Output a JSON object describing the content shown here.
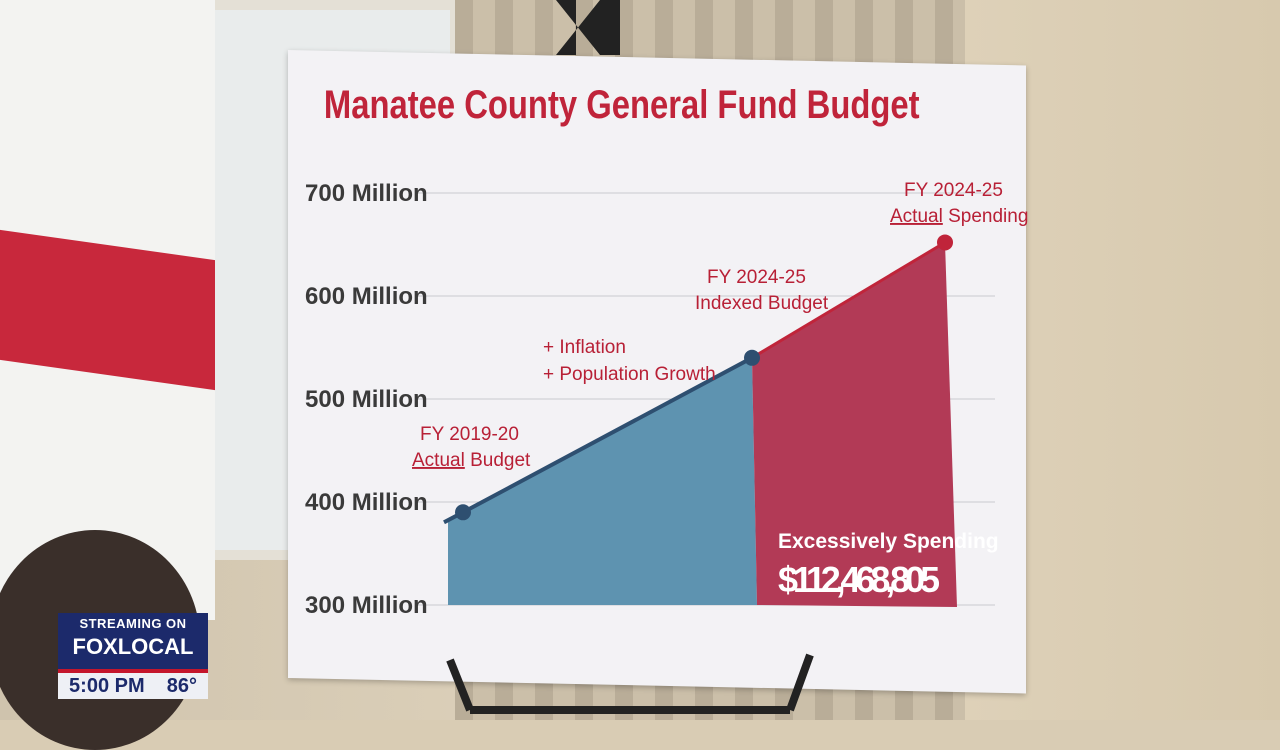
{
  "chart_data": {
    "type": "area",
    "title": "Manatee County General Fund Budget",
    "y_ticks": [
      "700 Million",
      "600 Million",
      "500 Million",
      "400 Million",
      "300 Million"
    ],
    "ylim": [
      300,
      700
    ],
    "y_unit": "Million",
    "grid": true,
    "points": [
      {
        "label_line1": "FY 2019-20",
        "label_line2_underlined": "Actual",
        "label_line2_rest": " Budget",
        "value": 390
      },
      {
        "label_line1": "FY 2024-25",
        "label_line2": "Indexed Budget",
        "value": 540
      },
      {
        "label_line1": "FY 2024-25",
        "label_line2_underlined": "Actual",
        "label_line2_rest": " Spending",
        "value": 652
      }
    ],
    "annotations": [
      "+ Inflation",
      "+ Population Growth"
    ],
    "excess_label": "Excessively Spending",
    "excess_amount": "$112,468,805",
    "colors": {
      "title": "#c0243a",
      "indexed_area": "#5e93b0",
      "excess_area": "#b23a56",
      "line": "#2e4f70"
    }
  },
  "broadcast": {
    "streaming": "STREAMING ON",
    "brand_fox": "FOX",
    "brand_local": "LOCAL",
    "time": "5:00 PM",
    "temperature": "86°"
  }
}
